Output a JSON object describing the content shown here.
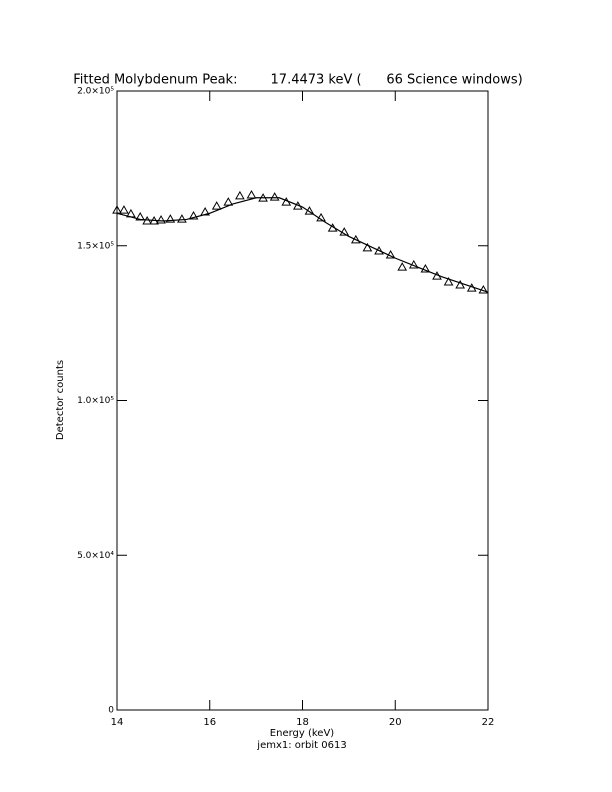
{
  "chart_data": {
    "type": "scatter",
    "title": "Fitted Molybdenum Peak:        17.4473 keV (      66 Science windows)",
    "x_label": "Energy (keV)",
    "subtitle": "jemx1: orbit 0613",
    "y_label": "Detector counts",
    "xlim": [
      14,
      22
    ],
    "xticks": [
      14,
      16,
      18,
      20,
      22
    ],
    "ylim": [
      0,
      200000
    ],
    "yticks": [
      {
        "value": 0,
        "label": "0"
      },
      {
        "value": 50000,
        "label": "5.0×10⁴"
      },
      {
        "value": 100000,
        "label": "1.0×10⁵"
      },
      {
        "value": 150000,
        "label": "1.5×10⁵"
      },
      {
        "value": 200000,
        "label": "2.0×10⁵"
      }
    ],
    "series": [
      {
        "marker": "triangle",
        "color": "#000000",
        "x": [
          14.0,
          14.15,
          14.3,
          14.5,
          14.65,
          14.8,
          14.95,
          15.15,
          15.4,
          15.65,
          15.9,
          16.15,
          16.4,
          16.65,
          16.9,
          17.15,
          17.4,
          17.65,
          17.9,
          18.15,
          18.4,
          18.65,
          18.9,
          19.15,
          19.4,
          19.65,
          19.9,
          20.15,
          20.4,
          20.65,
          20.9,
          21.15,
          21.4,
          21.65,
          21.9
        ],
        "values": [
          161500,
          161500,
          160300,
          159300,
          158000,
          158000,
          158300,
          158600,
          158600,
          159600,
          160900,
          162800,
          164100,
          166100,
          166400,
          165400,
          165700,
          164100,
          162800,
          161200,
          159000,
          155700,
          154400,
          151900,
          149300,
          148300,
          147000,
          143100,
          143800,
          142500,
          140200,
          138300,
          137300,
          136300,
          135700
        ]
      },
      {
        "marker": "line",
        "color": "#000000",
        "x": [
          14,
          14.5,
          15,
          15.5,
          16,
          16.5,
          17,
          17.5,
          18,
          18.5,
          19,
          19.5,
          20,
          20.5,
          21,
          21.5,
          22
        ],
        "values": [
          160500,
          158500,
          158000,
          158500,
          160500,
          163500,
          165500,
          165500,
          162500,
          157500,
          153000,
          149500,
          146000,
          143000,
          140000,
          137500,
          135000
        ]
      }
    ]
  }
}
